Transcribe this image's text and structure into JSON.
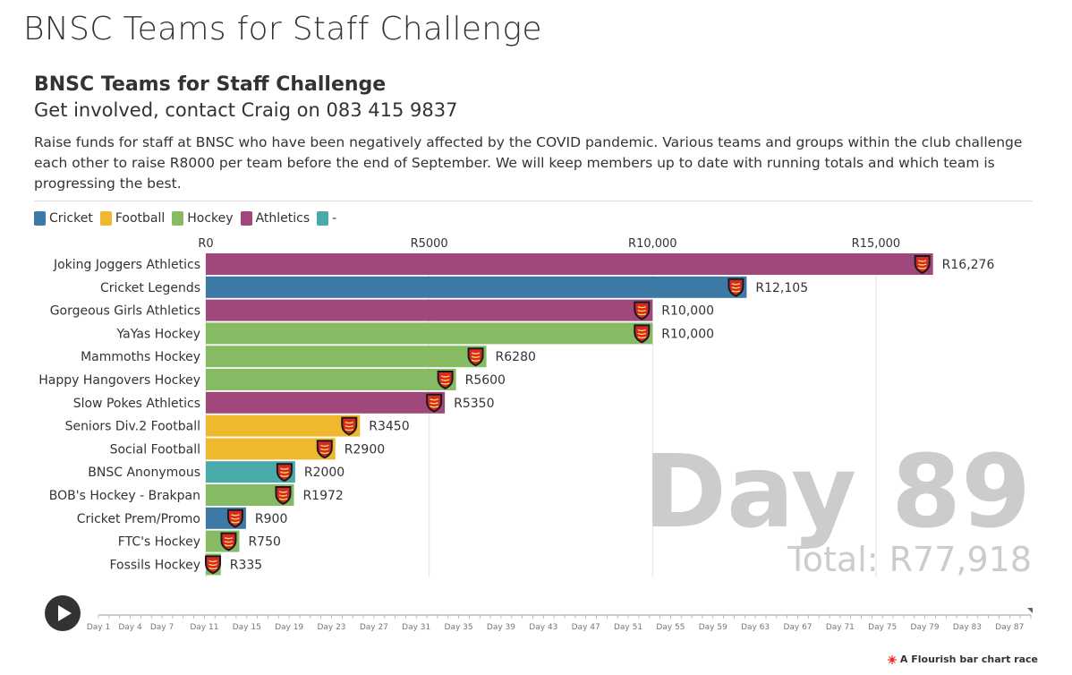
{
  "header": {
    "title": "BNSC Teams for Staff Challenge"
  },
  "chart_data": {
    "type": "bar",
    "orientation": "horizontal",
    "title": "BNSC Teams for Staff Challenge",
    "subtitle": "Get involved, contact Craig on 083 415 9837",
    "description": "Raise funds for staff at BNSC who have been negatively affected by the COVID pandemic. Various teams and groups within the club challenge each other to raise R8000 per team before the end of September. We will keep members up to date with running totals and which team is progressing the best.",
    "legend": [
      {
        "name": "Cricket",
        "color": "#3c79a4"
      },
      {
        "name": "Football",
        "color": "#f0b82e"
      },
      {
        "name": "Hockey",
        "color": "#86bb63"
      },
      {
        "name": "Athletics",
        "color": "#a0487c"
      },
      {
        "name": "-",
        "color": "#4aaaa9"
      }
    ],
    "legend_position": "top-left",
    "categories": [
      "Joking Joggers Athletics",
      "Cricket Legends",
      "Gorgeous Girls Athletics",
      "YaYas Hockey",
      "Mammoths Hockey",
      "Happy Hangovers Hockey",
      "Slow Pokes Athletics",
      "Seniors Div.2 Football",
      "Social Football",
      "BNSC Anonymous",
      "BOB's Hockey - Brakpan",
      "Cricket Prem/Promo",
      "FTC's Hockey",
      "Fossils Hockey"
    ],
    "values": [
      16276,
      12105,
      10000,
      10000,
      6280,
      5600,
      5350,
      3450,
      2900,
      2000,
      1972,
      900,
      750,
      335
    ],
    "value_labels": [
      "R16,276",
      "R12,105",
      "R10,000",
      "R10,000",
      "R6280",
      "R5600",
      "R5350",
      "R3450",
      "R2900",
      "R2000",
      "R1972",
      "R900",
      "R750",
      "R335"
    ],
    "groups": [
      "Athletics",
      "Cricket",
      "Athletics",
      "Hockey",
      "Hockey",
      "Hockey",
      "Athletics",
      "Football",
      "Football",
      "-",
      "Hockey",
      "Cricket",
      "Hockey",
      "Hockey"
    ],
    "xlim": [
      0,
      18500
    ],
    "x_ticks": [
      0,
      5000,
      10000,
      15000
    ],
    "x_tick_labels": [
      "R0",
      "R5000",
      "R10,000",
      "R15,000"
    ],
    "x_axis_position": "top",
    "grid": true,
    "period_label": "Day 89",
    "total_label": "Total: R77,918",
    "timeline": {
      "labels": [
        "Day 1",
        "Day 4",
        "Day 7",
        "Day 11",
        "Day 15",
        "Day 19",
        "Day 23",
        "Day 27",
        "Day 31",
        "Day 35",
        "Day 39",
        "Day 43",
        "Day 47",
        "Day 51",
        "Day 55",
        "Day 59",
        "Day 63",
        "Day 67",
        "Day 71",
        "Day 75",
        "Day 79",
        "Day 83",
        "Day 87"
      ],
      "days": [
        1,
        4,
        7,
        11,
        15,
        19,
        23,
        27,
        31,
        35,
        39,
        43,
        47,
        51,
        55,
        59,
        63,
        67,
        71,
        75,
        79,
        83,
        87
      ],
      "first_day": 1,
      "last_day": 89,
      "current_day": 89
    }
  },
  "controls": {
    "play_icon": "play-icon"
  },
  "footer": {
    "credit": "A Flourish bar chart race",
    "credit_icon": "flourish-logo-icon"
  },
  "bar_icon": "club-crest-icon"
}
